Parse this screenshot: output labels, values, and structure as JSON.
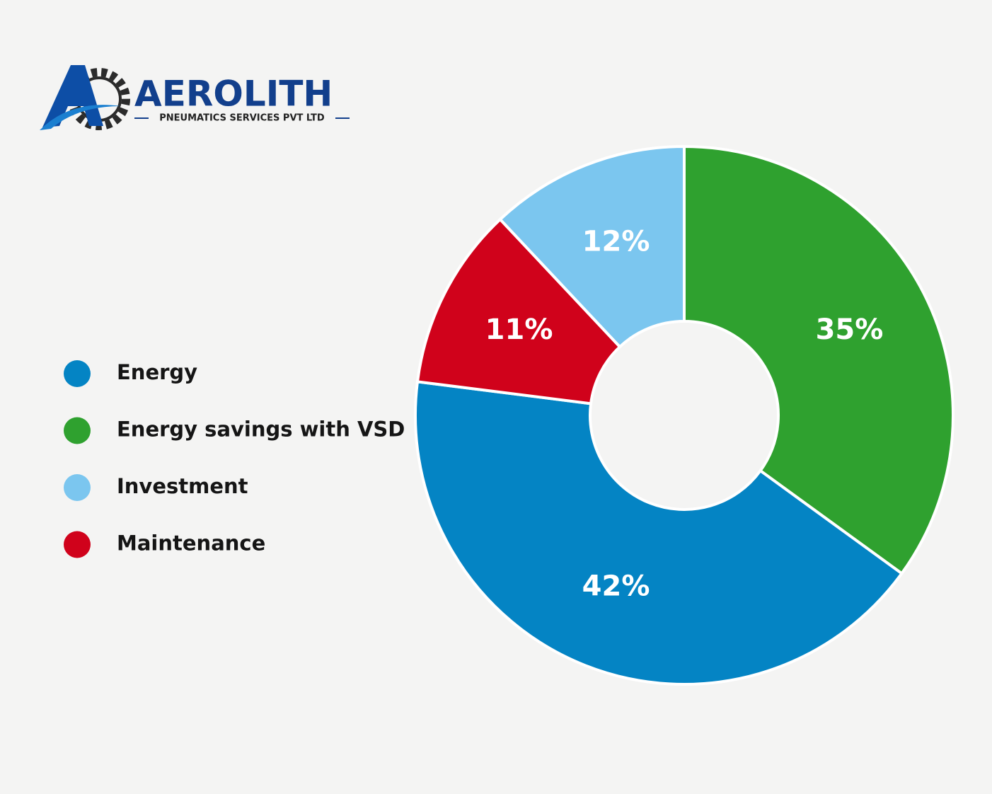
{
  "logo": {
    "name": "AEROLITH",
    "tagline": "PNEUMATICS SERVICES PVT LTD"
  },
  "chart_data": {
    "type": "donut",
    "values": [
      35,
      42,
      11,
      12
    ],
    "value_labels": [
      "35%",
      "42%",
      "11%",
      "12%"
    ],
    "colors": [
      "#2fa12f",
      "#0484c4",
      "#d0021b",
      "#7bc6ef"
    ],
    "legend": [
      {
        "name": "Energy",
        "color": "#0484c4"
      },
      {
        "name": "Energy savings with VSD",
        "color": "#2fa12f"
      },
      {
        "name": "Investment",
        "color": "#7bc6ef"
      },
      {
        "name": "Maintenance",
        "color": "#d0021b"
      }
    ]
  }
}
